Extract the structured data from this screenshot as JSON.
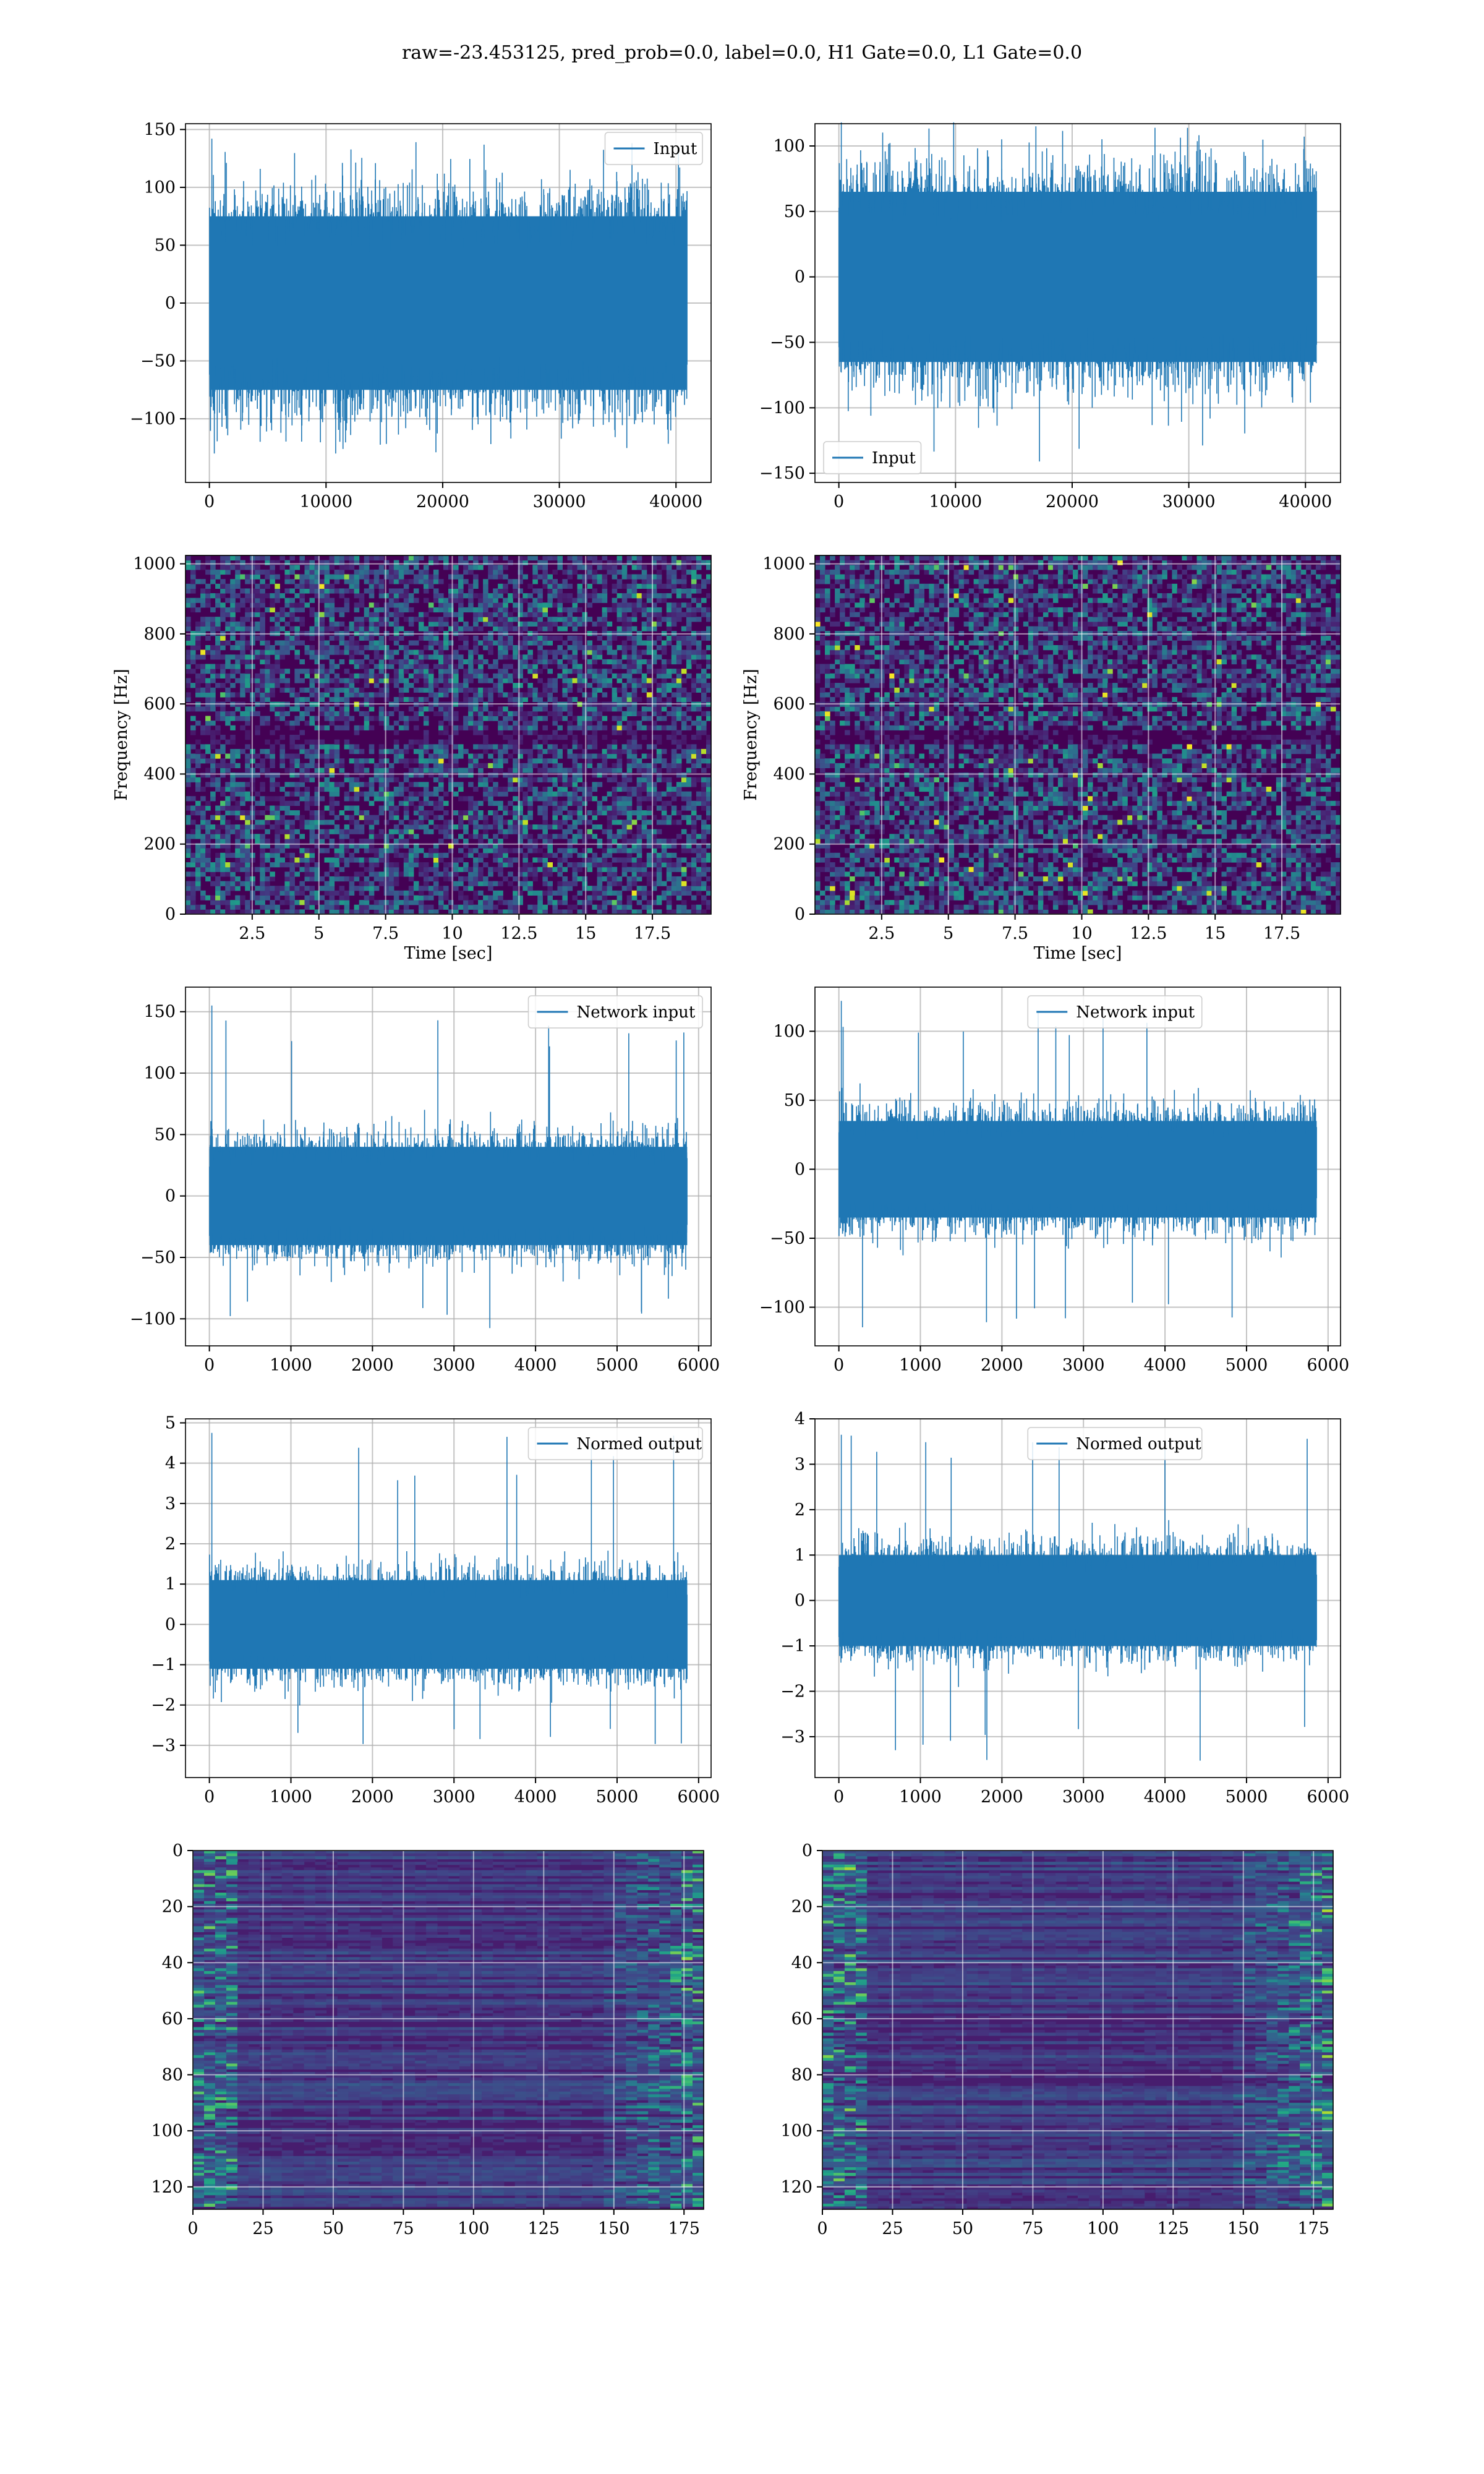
{
  "suptitle": "raw=-23.453125, pred_prob=0.0, label=0.0, H1 Gate=0.0, L1 Gate=0.0",
  "colors": {
    "line": "#1f77b4",
    "grid": "#b0b0b0"
  },
  "chart_data": [
    {
      "type": "line",
      "panel": "row1-left",
      "series": [
        {
          "name": "Input",
          "n_samples": 40960,
          "y_core_range": [
            -75,
            75
          ],
          "y_extreme_range": [
            -130,
            142
          ]
        }
      ],
      "xlim": [
        -2048,
        43008
      ],
      "ylim": [
        -155,
        155
      ],
      "xticks": [
        0,
        10000,
        20000,
        30000,
        40000
      ],
      "yticks": [
        -100,
        -50,
        0,
        50,
        100,
        150
      ],
      "legend": {
        "loc": "upper right"
      },
      "grid": true
    },
    {
      "type": "line",
      "panel": "row1-right",
      "series": [
        {
          "name": "Input",
          "n_samples": 40960,
          "y_core_range": [
            -65,
            65
          ],
          "y_extreme_range": [
            -145,
            118
          ]
        }
      ],
      "xlim": [
        -2048,
        43008
      ],
      "ylim": [
        -157,
        117
      ],
      "xticks": [
        0,
        10000,
        20000,
        30000,
        40000
      ],
      "yticks": [
        -150,
        -100,
        -50,
        0,
        50,
        100
      ],
      "legend": {
        "loc": "lower left"
      },
      "grid": true
    },
    {
      "type": "heatmap",
      "panel": "row2-left",
      "title": "",
      "xlabel": "Time [sec]",
      "ylabel": "Frequency [Hz]",
      "xlim": [
        0,
        19.7
      ],
      "ylim": [
        0,
        1024
      ],
      "xticks": [
        2.5,
        5.0,
        7.5,
        10.0,
        12.5,
        15.0,
        17.5
      ],
      "yticks": [
        0,
        200,
        400,
        600,
        800,
        1000
      ],
      "colormap": "viridis",
      "dark_band_hz": [
        480,
        520
      ],
      "grid": true
    },
    {
      "type": "heatmap",
      "panel": "row2-right",
      "xlabel": "Time [sec]",
      "ylabel": "Frequency [Hz]",
      "xlim": [
        0,
        19.7
      ],
      "ylim": [
        0,
        1024
      ],
      "xticks": [
        2.5,
        5.0,
        7.5,
        10.0,
        12.5,
        15.0,
        17.5
      ],
      "yticks": [
        0,
        200,
        400,
        600,
        800,
        1000
      ],
      "colormap": "viridis",
      "dark_band_hz": [
        480,
        520
      ],
      "grid": true
    },
    {
      "type": "line",
      "panel": "row3-left",
      "series": [
        {
          "name": "Network input",
          "n_samples": 5860,
          "y_core_range": [
            -40,
            40
          ],
          "y_extreme_range": [
            -110,
            155
          ]
        }
      ],
      "xlim": [
        -293,
        6153
      ],
      "ylim": [
        -122,
        170
      ],
      "xticks": [
        0,
        1000,
        2000,
        3000,
        4000,
        5000,
        6000
      ],
      "yticks": [
        -100,
        -50,
        0,
        50,
        100,
        150
      ],
      "legend": {
        "loc": "upper right"
      },
      "grid": true
    },
    {
      "type": "line",
      "panel": "row3-right",
      "series": [
        {
          "name": "Network input",
          "n_samples": 5860,
          "y_core_range": [
            -35,
            35
          ],
          "y_extreme_range": [
            -115,
            122
          ]
        }
      ],
      "xlim": [
        -293,
        6153
      ],
      "ylim": [
        -128,
        132
      ],
      "xticks": [
        0,
        1000,
        2000,
        3000,
        4000,
        5000,
        6000
      ],
      "yticks": [
        -100,
        -50,
        0,
        50,
        100
      ],
      "legend": {
        "loc": "upper center"
      },
      "grid": true
    },
    {
      "type": "line",
      "panel": "row4-left",
      "series": [
        {
          "name": "Normed output",
          "n_samples": 5860,
          "y_core_range": [
            -1.1,
            1.1
          ],
          "y_extreme_range": [
            -3.4,
            4.75
          ]
        }
      ],
      "xlim": [
        -293,
        6153
      ],
      "ylim": [
        -3.8,
        5.1
      ],
      "xticks": [
        0,
        1000,
        2000,
        3000,
        4000,
        5000,
        6000
      ],
      "yticks": [
        -3,
        -2,
        -1,
        0,
        1,
        2,
        3,
        4,
        5
      ],
      "legend": {
        "loc": "upper right"
      },
      "grid": true
    },
    {
      "type": "line",
      "panel": "row4-right",
      "series": [
        {
          "name": "Normed output",
          "n_samples": 5860,
          "y_core_range": [
            -1.0,
            1.0
          ],
          "y_extreme_range": [
            -3.55,
            3.65
          ]
        }
      ],
      "xlim": [
        -293,
        6153
      ],
      "ylim": [
        -3.9,
        4.0
      ],
      "xticks": [
        0,
        1000,
        2000,
        3000,
        4000,
        5000,
        6000
      ],
      "yticks": [
        -3,
        -2,
        -1,
        0,
        1,
        2,
        3,
        4
      ],
      "legend": {
        "loc": "upper center"
      },
      "grid": true
    },
    {
      "type": "heatmap",
      "panel": "row5-left",
      "xlim": [
        0,
        182
      ],
      "ylim": [
        128,
        0
      ],
      "xticks": [
        0,
        25,
        50,
        75,
        100,
        125,
        150,
        175
      ],
      "yticks": [
        0,
        20,
        40,
        60,
        80,
        100,
        120
      ],
      "colormap": "viridis",
      "grid": true
    },
    {
      "type": "heatmap",
      "panel": "row5-right",
      "xlim": [
        0,
        182
      ],
      "ylim": [
        128,
        0
      ],
      "xticks": [
        0,
        25,
        50,
        75,
        100,
        125,
        150,
        175
      ],
      "yticks": [
        0,
        20,
        40,
        60,
        80,
        100,
        120
      ],
      "colormap": "viridis",
      "grid": true
    }
  ]
}
